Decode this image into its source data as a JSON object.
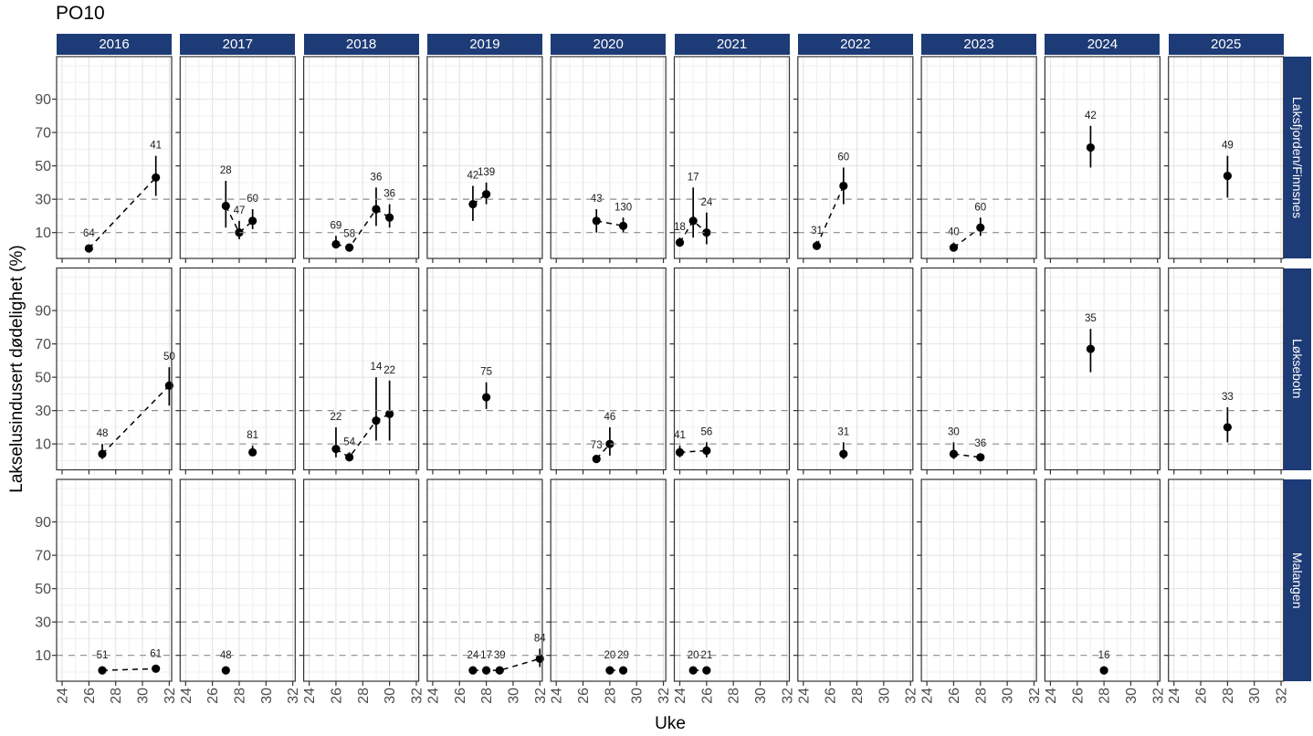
{
  "title": "PO10",
  "axes": {
    "x_label": "Uke",
    "y_label": "Lakselusindusert dødelighet (%)"
  },
  "colors": {
    "strip_bg": "#1d3b76",
    "strip_text": "#ffffff",
    "point": "#000000",
    "reference_line": "#8c8c8c",
    "grid_major": "#e2e2e2",
    "grid_minor": "#f0f0f0",
    "axis_text": "#4d4d4d",
    "panel_border": "#333333"
  },
  "chart_data": {
    "type": "scatter",
    "title": "PO10",
    "xlabel": "Uke",
    "ylabel": "Lakselusindusert dødelighet (%)",
    "facet_cols": [
      "2016",
      "2017",
      "2018",
      "2019",
      "2020",
      "2021",
      "2022",
      "2023",
      "2024",
      "2025"
    ],
    "facet_rows": [
      "Laksfjorden/Finnsnes",
      "Løksebotn",
      "Malangen"
    ],
    "x_ticks": [
      24,
      26,
      28,
      30,
      32
    ],
    "y_ticks": [
      10,
      30,
      50,
      70,
      90
    ],
    "x_minor": [
      25,
      27,
      29,
      31
    ],
    "y_minor": [
      0,
      20,
      40,
      60,
      80,
      100,
      110
    ],
    "reference_lines_y": [
      10,
      30
    ],
    "x_domain": [
      23.59,
      32.18
    ],
    "y_domain": [
      -5.5,
      115.5
    ],
    "grid": true,
    "legend": "none",
    "series": [
      {
        "row": "Laksfjorden/Finnsnes",
        "year": "2016",
        "connected": true,
        "points": [
          {
            "week": 26,
            "value": 0.5,
            "lo": null,
            "hi": null,
            "n": 64
          },
          {
            "week": 31,
            "value": 43,
            "lo": 32,
            "hi": 56,
            "n": 41
          }
        ]
      },
      {
        "row": "Laksfjorden/Finnsnes",
        "year": "2017",
        "connected": true,
        "points": [
          {
            "week": 27,
            "value": 26,
            "lo": 13,
            "hi": 41,
            "n": 28
          },
          {
            "week": 28,
            "value": 10,
            "lo": 6,
            "hi": 17,
            "n": 47
          },
          {
            "week": 29,
            "value": 17,
            "lo": 12,
            "hi": 24,
            "n": 60
          }
        ]
      },
      {
        "row": "Laksfjorden/Finnsnes",
        "year": "2018",
        "connected": true,
        "points": [
          {
            "week": 26,
            "value": 3,
            "lo": 1,
            "hi": 8,
            "n": 69
          },
          {
            "week": 27,
            "value": 1,
            "lo": 0,
            "hi": 3,
            "n": 58
          },
          {
            "week": 29,
            "value": 24,
            "lo": 14,
            "hi": 37,
            "n": 36
          },
          {
            "week": 30,
            "value": 19,
            "lo": 13,
            "hi": 27,
            "n": 36
          }
        ]
      },
      {
        "row": "Laksfjorden/Finnsnes",
        "year": "2019",
        "connected": true,
        "points": [
          {
            "week": 27,
            "value": 27,
            "lo": 17,
            "hi": 38,
            "n": 42
          },
          {
            "week": 28,
            "value": 33,
            "lo": 27,
            "hi": 40,
            "n": 139
          }
        ]
      },
      {
        "row": "Laksfjorden/Finnsnes",
        "year": "2020",
        "connected": true,
        "points": [
          {
            "week": 27,
            "value": 17,
            "lo": 10,
            "hi": 24,
            "n": 43
          },
          {
            "week": 29,
            "value": 14,
            "lo": 10,
            "hi": 19,
            "n": 130
          }
        ]
      },
      {
        "row": "Laksfjorden/Finnsnes",
        "year": "2021",
        "connected": true,
        "points": [
          {
            "week": 24,
            "value": 4,
            "lo": 2,
            "hi": 7,
            "n": 18
          },
          {
            "week": 25,
            "value": 17,
            "lo": 7,
            "hi": 37,
            "n": 17
          },
          {
            "week": 26,
            "value": 10,
            "lo": 3,
            "hi": 22,
            "n": 24
          }
        ]
      },
      {
        "row": "Laksfjorden/Finnsnes",
        "year": "2022",
        "connected": true,
        "points": [
          {
            "week": 25,
            "value": 2,
            "lo": 1,
            "hi": 5,
            "n": 31
          },
          {
            "week": 27,
            "value": 38,
            "lo": 27,
            "hi": 49,
            "n": 60
          }
        ]
      },
      {
        "row": "Laksfjorden/Finnsnes",
        "year": "2023",
        "connected": true,
        "points": [
          {
            "week": 26,
            "value": 1,
            "lo": 0,
            "hi": 4,
            "n": 40
          },
          {
            "week": 28,
            "value": 13,
            "lo": 8,
            "hi": 19,
            "n": 60
          }
        ]
      },
      {
        "row": "Laksfjorden/Finnsnes",
        "year": "2024",
        "connected": false,
        "points": [
          {
            "week": 27,
            "value": 61,
            "lo": 49,
            "hi": 74,
            "n": 42
          }
        ]
      },
      {
        "row": "Laksfjorden/Finnsnes",
        "year": "2025",
        "connected": false,
        "points": [
          {
            "week": 28,
            "value": 44,
            "lo": 31,
            "hi": 56,
            "n": 49
          }
        ]
      },
      {
        "row": "Løksebotn",
        "year": "2016",
        "connected": true,
        "points": [
          {
            "week": 27,
            "value": 4,
            "lo": 1,
            "hi": 10,
            "n": 48
          },
          {
            "week": 32,
            "value": 45,
            "lo": 33,
            "hi": 56,
            "n": 50
          }
        ]
      },
      {
        "row": "Løksebotn",
        "year": "2017",
        "connected": false,
        "points": [
          {
            "week": 29,
            "value": 5,
            "lo": 3,
            "hi": 9,
            "n": 81
          }
        ]
      },
      {
        "row": "Løksebotn",
        "year": "2018",
        "connected": true,
        "points": [
          {
            "week": 26,
            "value": 7,
            "lo": 2,
            "hi": 20,
            "n": 22
          },
          {
            "week": 27,
            "value": 2,
            "lo": 0,
            "hi": 5,
            "n": 54
          },
          {
            "week": 29,
            "value": 24,
            "lo": 12,
            "hi": 50,
            "n": 14
          },
          {
            "week": 30,
            "value": 28,
            "lo": 12,
            "hi": 48,
            "n": 22
          }
        ]
      },
      {
        "row": "Løksebotn",
        "year": "2019",
        "connected": false,
        "points": [
          {
            "week": 28,
            "value": 38,
            "lo": 31,
            "hi": 47,
            "n": 75
          }
        ]
      },
      {
        "row": "Løksebotn",
        "year": "2020",
        "connected": true,
        "points": [
          {
            "week": 27,
            "value": 1,
            "lo": 0,
            "hi": 3,
            "n": 73
          },
          {
            "week": 28,
            "value": 10,
            "lo": 3,
            "hi": 20,
            "n": 46
          }
        ]
      },
      {
        "row": "Løksebotn",
        "year": "2021",
        "connected": true,
        "points": [
          {
            "week": 24,
            "value": 5,
            "lo": 2,
            "hi": 9,
            "n": 41
          },
          {
            "week": 26,
            "value": 6,
            "lo": 2,
            "hi": 11,
            "n": 56
          }
        ]
      },
      {
        "row": "Løksebotn",
        "year": "2022",
        "connected": false,
        "points": [
          {
            "week": 27,
            "value": 4,
            "lo": 1,
            "hi": 11,
            "n": 31
          }
        ]
      },
      {
        "row": "Løksebotn",
        "year": "2023",
        "connected": true,
        "points": [
          {
            "week": 26,
            "value": 4,
            "lo": 1,
            "hi": 11,
            "n": 30
          },
          {
            "week": 28,
            "value": 2,
            "lo": 0,
            "hi": 4,
            "n": 36
          }
        ]
      },
      {
        "row": "Løksebotn",
        "year": "2024",
        "connected": false,
        "points": [
          {
            "week": 27,
            "value": 67,
            "lo": 53,
            "hi": 79,
            "n": 35
          }
        ]
      },
      {
        "row": "Løksebotn",
        "year": "2025",
        "connected": false,
        "points": [
          {
            "week": 28,
            "value": 20,
            "lo": 11,
            "hi": 32,
            "n": 33
          }
        ]
      },
      {
        "row": "Malangen",
        "year": "2016",
        "connected": true,
        "points": [
          {
            "week": 27,
            "value": 1,
            "lo": null,
            "hi": null,
            "n": 51
          },
          {
            "week": 31,
            "value": 2,
            "lo": null,
            "hi": null,
            "n": 61
          }
        ]
      },
      {
        "row": "Malangen",
        "year": "2017",
        "connected": false,
        "points": [
          {
            "week": 27,
            "value": 1,
            "lo": null,
            "hi": null,
            "n": 48
          }
        ]
      },
      {
        "row": "Malangen",
        "year": "2019",
        "connected": true,
        "points": [
          {
            "week": 27,
            "value": 1,
            "lo": null,
            "hi": null,
            "n": 24
          },
          {
            "week": 28,
            "value": 1,
            "lo": null,
            "hi": null,
            "n": 17
          },
          {
            "week": 29,
            "value": 1,
            "lo": null,
            "hi": null,
            "n": 39
          },
          {
            "week": 32,
            "value": 8,
            "lo": 3,
            "hi": 14,
            "n": 84
          }
        ]
      },
      {
        "row": "Malangen",
        "year": "2020",
        "connected": true,
        "points": [
          {
            "week": 28,
            "value": 1,
            "lo": null,
            "hi": null,
            "n": 20
          },
          {
            "week": 29,
            "value": 1,
            "lo": null,
            "hi": null,
            "n": 29
          }
        ]
      },
      {
        "row": "Malangen",
        "year": "2021",
        "connected": true,
        "points": [
          {
            "week": 25,
            "value": 1,
            "lo": null,
            "hi": null,
            "n": 20
          },
          {
            "week": 26,
            "value": 1,
            "lo": null,
            "hi": null,
            "n": 21
          }
        ]
      },
      {
        "row": "Malangen",
        "year": "2024",
        "connected": false,
        "points": [
          {
            "week": 28,
            "value": 1,
            "lo": null,
            "hi": null,
            "n": 16
          }
        ]
      }
    ]
  }
}
